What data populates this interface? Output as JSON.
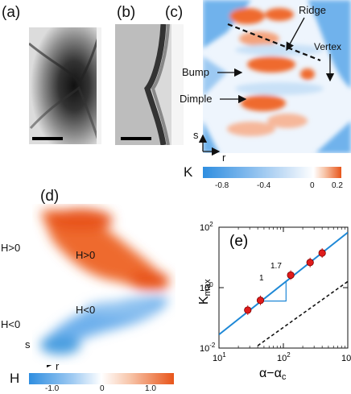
{
  "panel_labels": {
    "a": "(a)",
    "b": "(b)",
    "c": "(c)",
    "d": "(d)",
    "e": "(e)"
  },
  "panel_c": {
    "annotations": {
      "ridge": "Ridge",
      "vertex": "Vertex",
      "bump": "Bump",
      "dimple": "Dimple"
    },
    "axes": {
      "s": "s",
      "r": "r"
    },
    "colorbar": {
      "symbol": "K",
      "ticks": [
        "-0.8",
        "-0.4",
        "0",
        "0.2"
      ]
    }
  },
  "panel_d": {
    "region_labels": {
      "outer_top": "H>0",
      "inner_top": "H>0",
      "inner_bottom": "H<0",
      "outer_bottom": "H<0"
    },
    "axes": {
      "s": "s",
      "r": "r"
    },
    "colorbar": {
      "symbol": "H",
      "ticks": [
        "-1.0",
        "0",
        "1.0"
      ]
    }
  },
  "colors": {
    "positive": "#e8551a",
    "negative": "#4a9ee0",
    "fit_line": "#1e88d6",
    "marker": "#e01b1b"
  },
  "chart_data": {
    "type": "scatter",
    "xscale": "log",
    "yscale": "log",
    "xlim": [
      10,
      1000
    ],
    "ylim": [
      0.01,
      100
    ],
    "xlabel": "α−α",
    "xlabel_sub": "c",
    "ylabel": "K",
    "ylabel_sub": "max",
    "x_ticks": [
      {
        "value": 10,
        "base": "10",
        "exp": "1"
      },
      {
        "value": 100,
        "base": "10",
        "exp": "2"
      },
      {
        "value": 1000,
        "base": "10",
        "exp": "3"
      }
    ],
    "y_ticks": [
      {
        "value": 0.01,
        "base": "10",
        "exp": "-2"
      },
      {
        "value": 1,
        "base": "10",
        "exp": "0"
      },
      {
        "value": 100,
        "base": "10",
        "exp": "2"
      }
    ],
    "series": [
      {
        "points": [
          {
            "x": 28,
            "y": 0.18
          },
          {
            "x": 44,
            "y": 0.38
          },
          {
            "x": 130,
            "y": 2.6
          },
          {
            "x": 260,
            "y": 6.8
          },
          {
            "x": 400,
            "y": 14
          }
        ]
      }
    ],
    "fit_line": {
      "slope": 1.7,
      "x": [
        10,
        1000
      ],
      "y": [
        0.028,
        67
      ]
    },
    "reference_line": {
      "style": "dashed",
      "x": [
        40,
        1000
      ],
      "y": [
        0.012,
        1.6
      ]
    },
    "slope_triangle": {
      "run_label": "1",
      "rise_label": "1.7"
    }
  }
}
